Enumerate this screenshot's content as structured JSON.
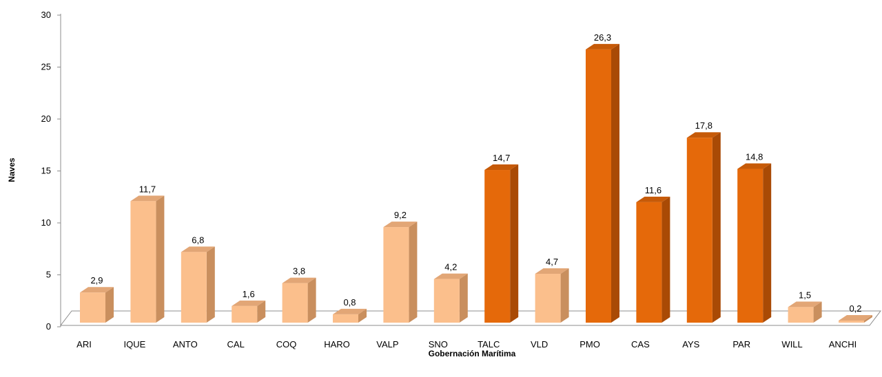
{
  "chart_data": {
    "type": "bar",
    "title": "",
    "xlabel": "Gobernación Marítima",
    "ylabel": "Naves",
    "ylim": [
      0,
      30
    ],
    "yticks": [
      "0",
      "5",
      "10",
      "15",
      "20",
      "25",
      "30"
    ],
    "categories": [
      "ARI",
      "IQUE",
      "ANTO",
      "CAL",
      "COQ",
      "HARO",
      "VALP",
      "SNO",
      "TALC",
      "VLD",
      "PMO",
      "CAS",
      "AYS",
      "PAR",
      "WILL",
      "ANCHI"
    ],
    "values": [
      2.9,
      11.7,
      6.8,
      1.6,
      3.8,
      0.8,
      9.2,
      4.2,
      14.7,
      4.7,
      26.3,
      11.6,
      17.8,
      14.8,
      1.5,
      0.2
    ],
    "value_labels": [
      "2,9",
      "11,7",
      "6,8",
      "1,6",
      "3,8",
      "0,8",
      "9,2",
      "4,2",
      "14,7",
      "4,7",
      "26,3",
      "11,6",
      "17,8",
      "14,8",
      "1,5",
      "0,2"
    ],
    "highlighted": [
      false,
      false,
      false,
      false,
      false,
      false,
      false,
      false,
      true,
      false,
      true,
      true,
      true,
      true,
      false,
      false
    ],
    "grid": false,
    "legend": "none",
    "colors": {
      "light_front": "#FBBF8C",
      "light_side": "#C98F5E",
      "light_top": "#E2A676",
      "dark_front": "#E5690A",
      "dark_side": "#A94A05",
      "dark_top": "#C65A08"
    }
  }
}
